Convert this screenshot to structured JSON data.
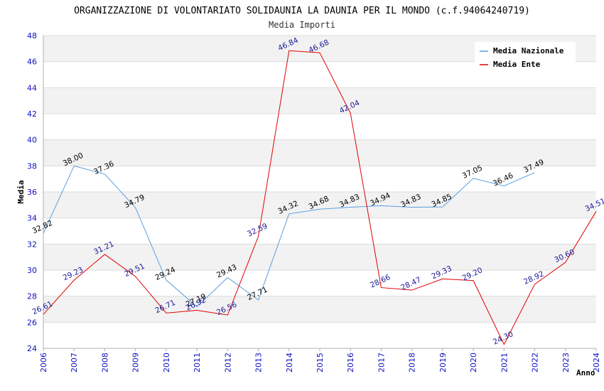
{
  "chart_data": {
    "type": "line",
    "title": "ORGANIZZAZIONE DI VOLONTARIATO SOLIDAUNIA LA DAUNIA PER IL MONDO (c.f.94064240719)",
    "subtitle": "Media Importi",
    "xlabel": "Anno",
    "ylabel": "Media",
    "x": [
      "2006",
      "2007",
      "2008",
      "2009",
      "2010",
      "2011",
      "2012",
      "2013",
      "2014",
      "2015",
      "2016",
      "2017",
      "2018",
      "2019",
      "2020",
      "2021",
      "2022",
      "2023",
      "2024"
    ],
    "ylim": [
      24,
      48
    ],
    "yticks": [
      "24",
      "26",
      "28",
      "30",
      "32",
      "34",
      "36",
      "38",
      "40",
      "42",
      "44",
      "46",
      "48"
    ],
    "grid": "horizontal",
    "legend_position": "top-right",
    "series": [
      {
        "name": "Media Nazionale",
        "color": "#5aa0e0",
        "values": [
          32.82,
          38.0,
          37.36,
          34.79,
          29.24,
          27.19,
          29.43,
          27.71,
          34.32,
          34.68,
          34.83,
          34.94,
          34.83,
          34.85,
          37.05,
          36.46,
          37.49,
          null,
          null
        ],
        "labels": [
          "32.82",
          "38.00",
          "37.36",
          "34.79",
          "29.24",
          "27.19",
          "29.43",
          "27.71",
          "34.32",
          "34.68",
          "34.83",
          "34.94",
          "34.83",
          "34.85",
          "37.05",
          "36.46",
          "37.49",
          "",
          ""
        ]
      },
      {
        "name": "Media Ente",
        "color": "#e00000",
        "values": [
          26.61,
          29.23,
          31.21,
          29.51,
          26.71,
          26.92,
          26.56,
          32.59,
          46.84,
          46.68,
          42.04,
          28.66,
          28.47,
          29.33,
          29.2,
          24.3,
          28.92,
          30.6,
          34.51
        ],
        "labels": [
          "26.61",
          "29.23",
          "31.21",
          "29.51",
          "26.71",
          "26.92",
          "26.56",
          "32.59",
          "46.84",
          "46.68",
          "42.04",
          "28.66",
          "28.47",
          "29.33",
          "29.20",
          "24.30",
          "28.92",
          "30.60",
          "34.51"
        ]
      }
    ]
  }
}
